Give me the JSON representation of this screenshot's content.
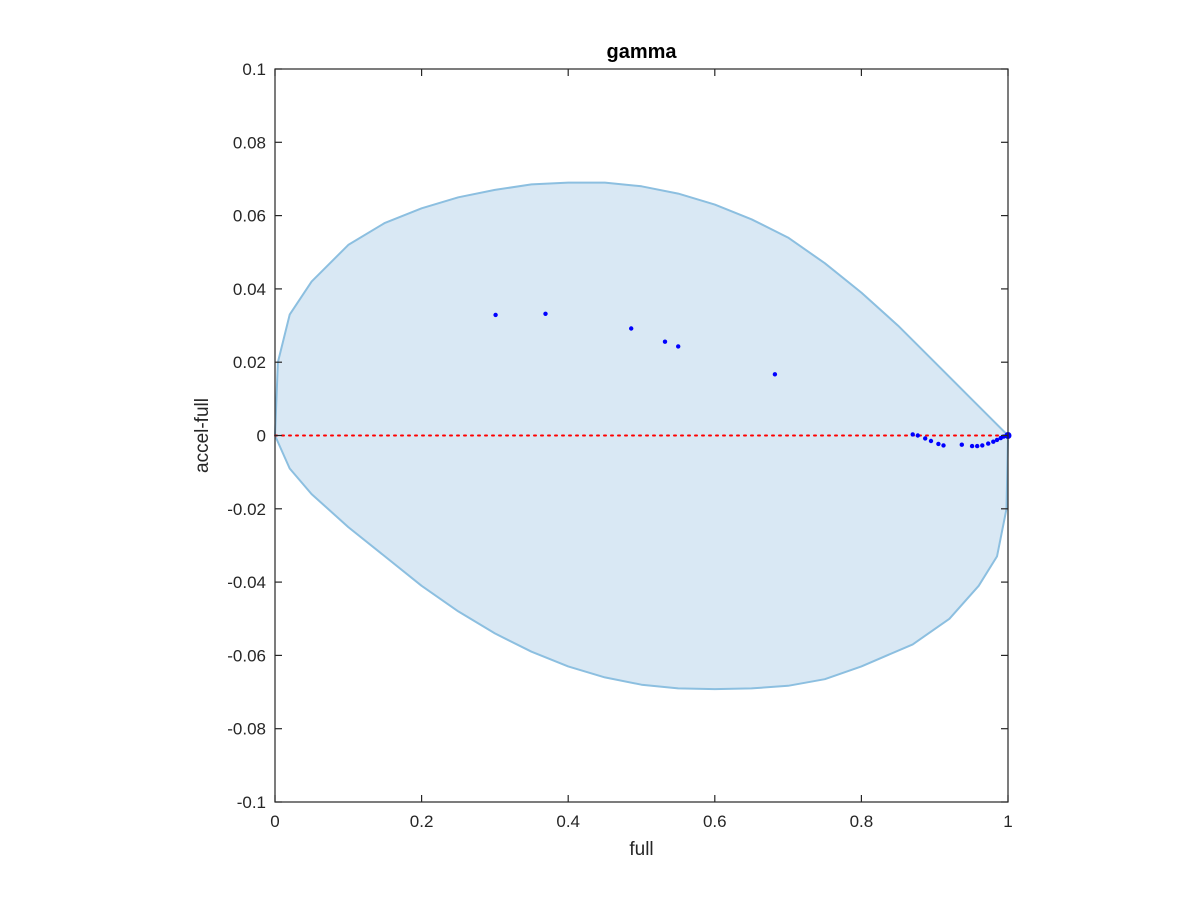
{
  "chart_data": {
    "type": "scatter",
    "title": "gamma",
    "xlabel": "full",
    "ylabel": "accel-full",
    "xlim": [
      0,
      1
    ],
    "ylim": [
      -0.1,
      0.1
    ],
    "x_ticks": [
      0,
      0.2,
      0.4,
      0.6,
      0.8,
      1
    ],
    "x_tick_labels": [
      "0",
      "0.2",
      "0.4",
      "0.6",
      "0.8",
      "1"
    ],
    "y_ticks": [
      -0.1,
      -0.08,
      -0.06,
      -0.04,
      -0.02,
      0,
      0.02,
      0.04,
      0.06,
      0.08,
      0.1
    ],
    "y_tick_labels": [
      "-0.1",
      "-0.08",
      "-0.06",
      "-0.04",
      "-0.02",
      "0",
      "0.02",
      "0.04",
      "0.06",
      "0.08",
      "0.1"
    ],
    "grid": false,
    "region": {
      "shape": "ellipse",
      "boundary": [
        [
          0.0,
          0.0
        ],
        [
          0.004,
          0.02
        ],
        [
          0.02,
          0.033
        ],
        [
          0.05,
          0.042
        ],
        [
          0.1,
          0.052
        ],
        [
          0.15,
          0.058
        ],
        [
          0.2,
          0.062
        ],
        [
          0.25,
          0.065
        ],
        [
          0.3,
          0.067
        ],
        [
          0.35,
          0.0685
        ],
        [
          0.4,
          0.069
        ],
        [
          0.45,
          0.069
        ],
        [
          0.5,
          0.068
        ],
        [
          0.55,
          0.066
        ],
        [
          0.6,
          0.063
        ],
        [
          0.65,
          0.059
        ],
        [
          0.7,
          0.054
        ],
        [
          0.75,
          0.047
        ],
        [
          0.8,
          0.039
        ],
        [
          0.85,
          0.03
        ],
        [
          0.9,
          0.02
        ],
        [
          0.95,
          0.01
        ],
        [
          0.98,
          0.004
        ],
        [
          1.0,
          0.0
        ],
        [
          0.998,
          -0.02
        ],
        [
          0.985,
          -0.033
        ],
        [
          0.96,
          -0.041
        ],
        [
          0.92,
          -0.05
        ],
        [
          0.87,
          -0.057
        ],
        [
          0.8,
          -0.063
        ],
        [
          0.75,
          -0.0665
        ],
        [
          0.7,
          -0.0683
        ],
        [
          0.65,
          -0.069
        ],
        [
          0.6,
          -0.0692
        ],
        [
          0.55,
          -0.069
        ],
        [
          0.5,
          -0.068
        ],
        [
          0.45,
          -0.066
        ],
        [
          0.4,
          -0.063
        ],
        [
          0.35,
          -0.059
        ],
        [
          0.3,
          -0.054
        ],
        [
          0.25,
          -0.048
        ],
        [
          0.2,
          -0.041
        ],
        [
          0.15,
          -0.033
        ],
        [
          0.1,
          -0.025
        ],
        [
          0.05,
          -0.016
        ],
        [
          0.02,
          -0.009
        ],
        [
          0.0,
          0.0
        ]
      ],
      "fill_color": "#d9e8f4",
      "edge_color": "#8cbfe0"
    },
    "reference_line": {
      "y": 0,
      "style": "dotted",
      "color": "#ff0000"
    },
    "series": [
      {
        "color": "#0000ff",
        "points": [
          [
            0.301,
            0.0329
          ],
          [
            0.369,
            0.0332
          ],
          [
            0.486,
            0.0292
          ],
          [
            0.532,
            0.0256
          ],
          [
            0.55,
            0.0243
          ],
          [
            0.682,
            0.0167
          ],
          [
            0.87,
            0.0003
          ],
          [
            0.877,
            0.0
          ],
          [
            0.887,
            -0.0008
          ],
          [
            0.895,
            -0.0015
          ],
          [
            0.905,
            -0.0023
          ],
          [
            0.912,
            -0.0027
          ],
          [
            0.937,
            -0.0025
          ],
          [
            0.951,
            -0.0029
          ],
          [
            0.958,
            -0.0029
          ],
          [
            0.965,
            -0.0027
          ],
          [
            0.973,
            -0.0022
          ],
          [
            0.98,
            -0.0017
          ],
          [
            0.985,
            -0.0012
          ],
          [
            0.99,
            -0.0007
          ],
          [
            0.994,
            -0.0003
          ],
          [
            0.998,
            0.0
          ],
          [
            1.0,
            0.0
          ]
        ]
      }
    ],
    "axes_color": "#262626"
  }
}
